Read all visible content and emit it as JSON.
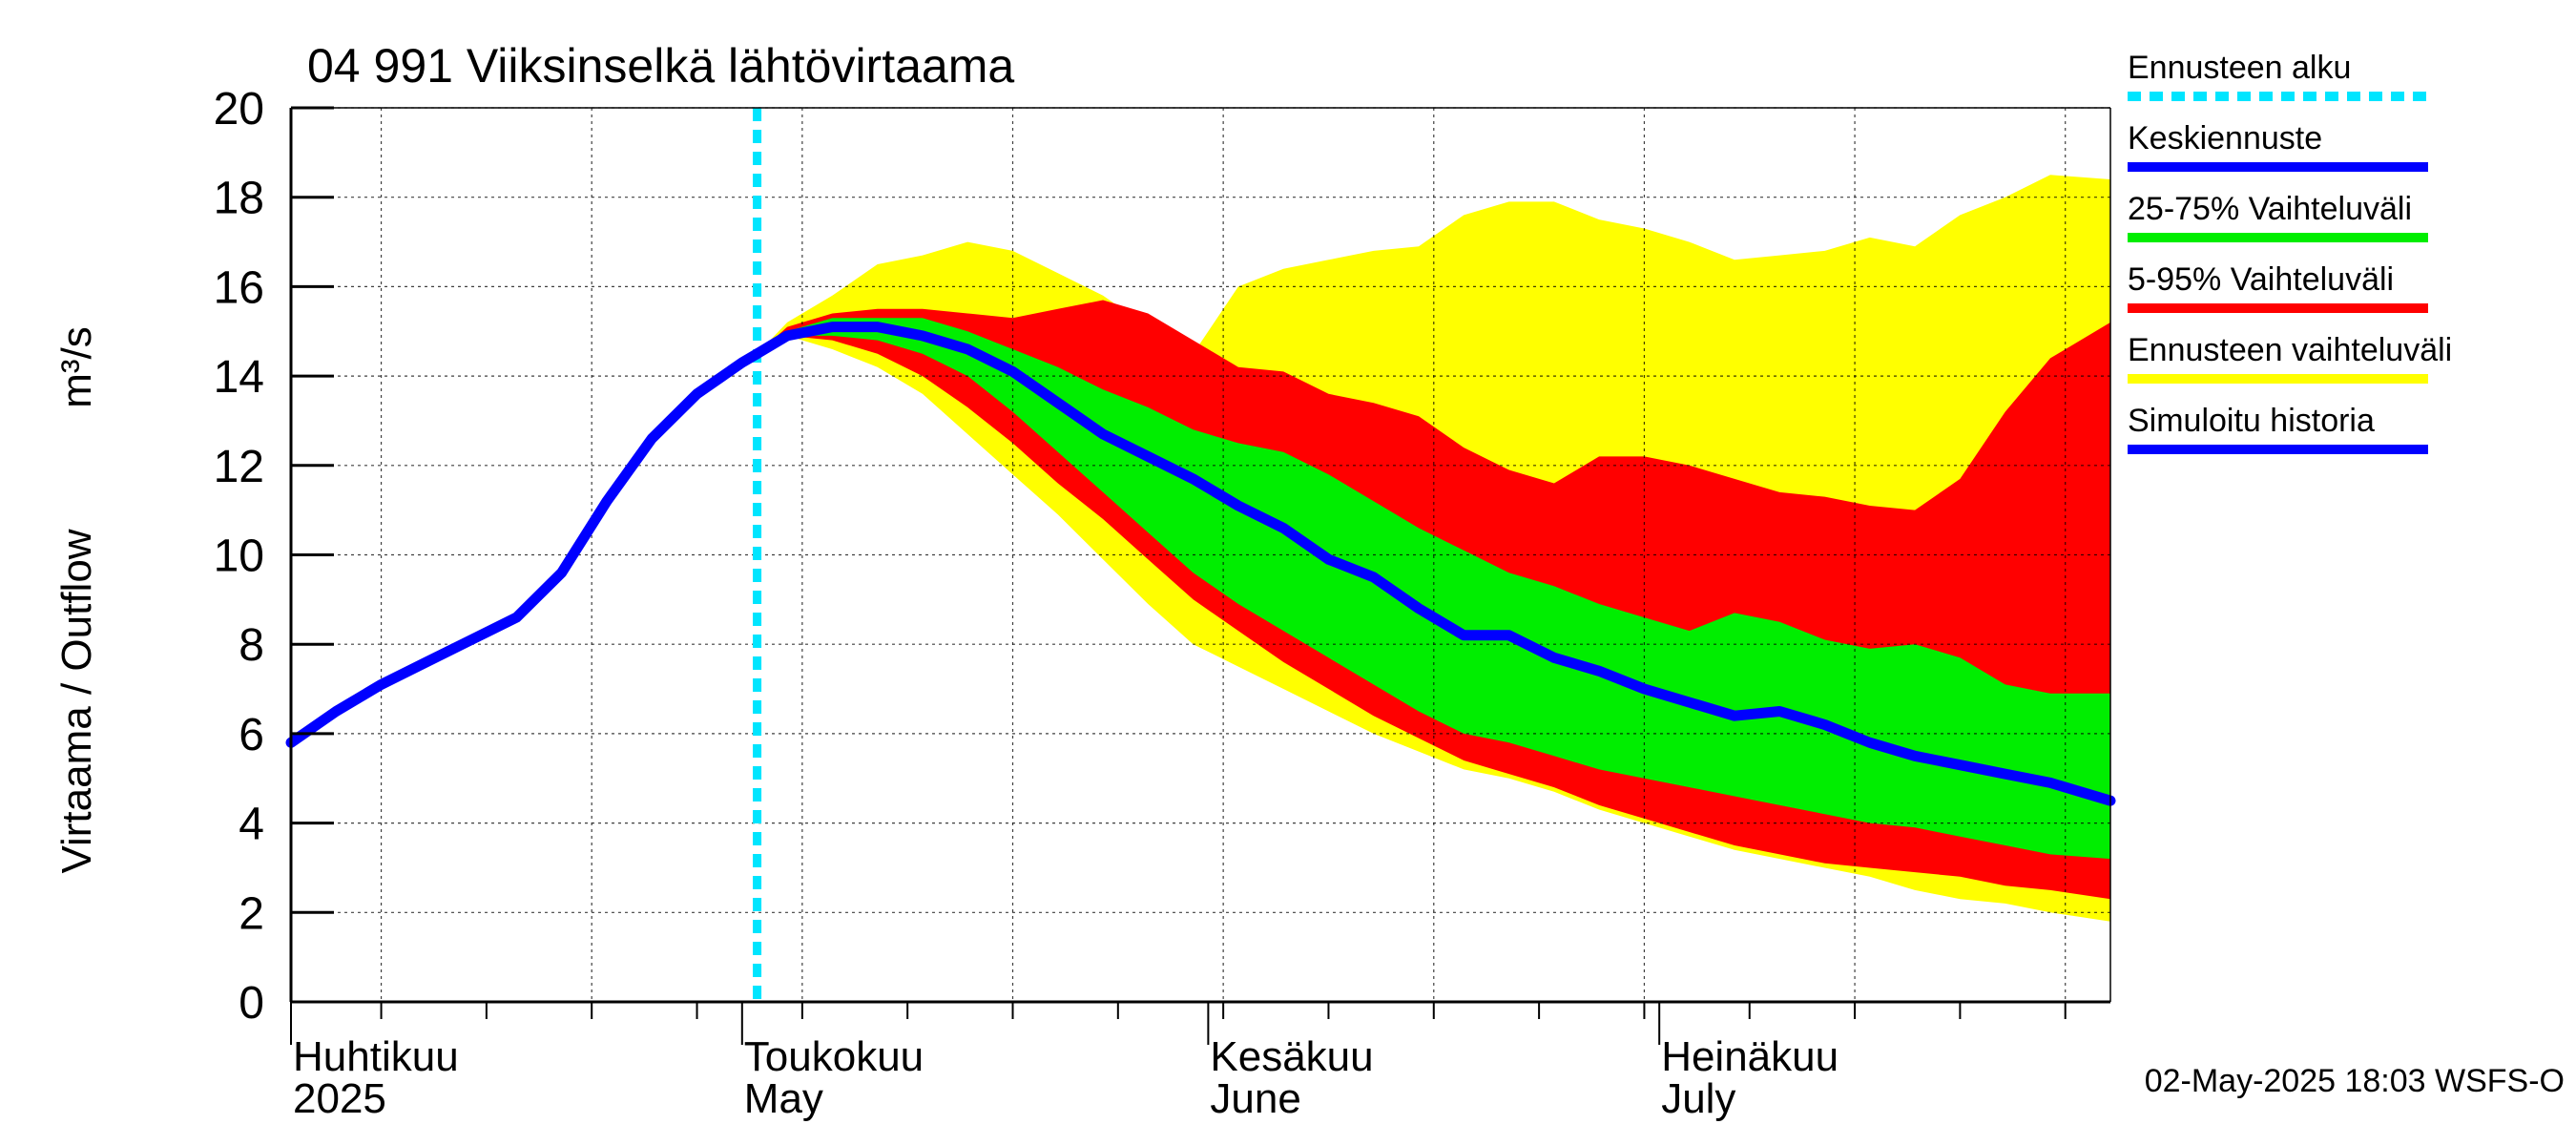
{
  "chart_data": {
    "type": "area",
    "title": "04 991 Viiksinselkä lähtövirtaama",
    "ylabel_left": "Virtaama / Outflow",
    "ylabel_right": "m³/s",
    "ylim": [
      0,
      20
    ],
    "yticks": [
      0,
      2,
      4,
      6,
      8,
      10,
      12,
      14,
      16,
      18,
      20
    ],
    "xrange": [
      "2025-04-01",
      "2025-07-31"
    ],
    "month_labels": [
      {
        "line1": "Huhtikuu",
        "line2": "2025",
        "date": "2025-04-01"
      },
      {
        "line1": "Toukokuu",
        "line2": "May",
        "date": "2025-05-01"
      },
      {
        "line1": "Kesäkuu",
        "line2": "June",
        "date": "2025-06-01"
      },
      {
        "line1": "Heinäkuu",
        "line2": "July",
        "date": "2025-07-01"
      }
    ],
    "forecast_start": "2025-05-02",
    "legend": {
      "position": "right",
      "items": [
        {
          "label": "Ennusteen alku",
          "color": "#00e5ff",
          "style": "dashed"
        },
        {
          "label": "Keskiennuste",
          "color": "#0000ff",
          "style": "solid"
        },
        {
          "label": "25-75% Vaihteluväli",
          "color": "#00ee00",
          "style": "solid"
        },
        {
          "label": "5-95% Vaihteluväli",
          "color": "#ff0000",
          "style": "solid"
        },
        {
          "label": "Ennusteen vaihteluväli",
          "color": "#ffff00",
          "style": "solid"
        },
        {
          "label": "Simuloitu historia",
          "color": "#0000ff",
          "style": "solid"
        }
      ]
    },
    "footer": "02-May-2025 18:03 WSFS-O",
    "colors": {
      "forecast_range": "#ffff00",
      "p5_95": "#ff0000",
      "p25_75": "#00ee00",
      "mean": "#0000ff",
      "forecast_start": "#00e5ff"
    },
    "series": {
      "simulated_history": {
        "x": [
          "2025-04-01",
          "2025-04-04",
          "2025-04-07",
          "2025-04-10",
          "2025-04-13",
          "2025-04-16",
          "2025-04-19",
          "2025-04-22",
          "2025-04-25",
          "2025-04-28",
          "2025-05-01",
          "2025-05-02"
        ],
        "y": [
          5.8,
          6.5,
          7.1,
          7.6,
          8.1,
          8.6,
          9.6,
          11.2,
          12.6,
          13.6,
          14.3,
          14.5
        ]
      },
      "mean_forecast": {
        "x": [
          "2025-05-02",
          "2025-05-04",
          "2025-05-07",
          "2025-05-10",
          "2025-05-13",
          "2025-05-16",
          "2025-05-19",
          "2025-05-22",
          "2025-05-25",
          "2025-05-28",
          "2025-05-31",
          "2025-06-03",
          "2025-06-06",
          "2025-06-09",
          "2025-06-12",
          "2025-06-15",
          "2025-06-18",
          "2025-06-21",
          "2025-06-24",
          "2025-06-27",
          "2025-06-30",
          "2025-07-03",
          "2025-07-06",
          "2025-07-09",
          "2025-07-12",
          "2025-07-15",
          "2025-07-18",
          "2025-07-21",
          "2025-07-24",
          "2025-07-27",
          "2025-07-31"
        ],
        "y": [
          14.5,
          14.9,
          15.1,
          15.1,
          14.9,
          14.6,
          14.1,
          13.4,
          12.7,
          12.2,
          11.7,
          11.1,
          10.6,
          9.9,
          9.5,
          8.8,
          8.2,
          8.2,
          7.7,
          7.4,
          7.0,
          6.7,
          6.4,
          6.5,
          6.2,
          5.8,
          5.5,
          5.3,
          5.1,
          4.9,
          4.5
        ]
      },
      "bands_x": [
        "2025-05-02",
        "2025-05-04",
        "2025-05-07",
        "2025-05-10",
        "2025-05-13",
        "2025-05-16",
        "2025-05-19",
        "2025-05-22",
        "2025-05-25",
        "2025-05-28",
        "2025-05-31",
        "2025-06-03",
        "2025-06-06",
        "2025-06-09",
        "2025-06-12",
        "2025-06-15",
        "2025-06-18",
        "2025-06-21",
        "2025-06-24",
        "2025-06-27",
        "2025-06-30",
        "2025-07-03",
        "2025-07-06",
        "2025-07-09",
        "2025-07-12",
        "2025-07-15",
        "2025-07-18",
        "2025-07-21",
        "2025-07-24",
        "2025-07-27",
        "2025-07-31"
      ],
      "forecast_range_max": [
        14.5,
        15.2,
        15.8,
        16.5,
        16.7,
        17.0,
        16.8,
        16.3,
        15.8,
        15.1,
        14.5,
        16.0,
        16.4,
        16.6,
        16.8,
        16.9,
        17.6,
        17.9,
        17.9,
        17.5,
        17.3,
        17.0,
        16.6,
        16.7,
        16.8,
        17.1,
        16.9,
        17.6,
        18.0,
        18.5,
        18.4
      ],
      "p95": [
        14.5,
        15.1,
        15.4,
        15.5,
        15.5,
        15.4,
        15.3,
        15.5,
        15.7,
        15.4,
        14.8,
        14.2,
        14.1,
        13.6,
        13.4,
        13.1,
        12.4,
        11.9,
        11.6,
        12.2,
        12.2,
        12.0,
        11.7,
        11.4,
        11.3,
        11.1,
        11.0,
        11.7,
        13.2,
        14.4,
        15.2
      ],
      "p75": [
        14.5,
        15.0,
        15.3,
        15.3,
        15.3,
        15.0,
        14.6,
        14.2,
        13.7,
        13.3,
        12.8,
        12.5,
        12.3,
        11.8,
        11.2,
        10.6,
        10.1,
        9.6,
        9.3,
        8.9,
        8.6,
        8.3,
        8.7,
        8.5,
        8.1,
        7.9,
        8.0,
        7.7,
        7.1,
        6.9,
        6.9
      ],
      "p25": [
        14.5,
        14.9,
        14.9,
        14.8,
        14.5,
        14.0,
        13.2,
        12.3,
        11.4,
        10.5,
        9.6,
        8.9,
        8.3,
        7.7,
        7.1,
        6.5,
        6.0,
        5.8,
        5.5,
        5.2,
        5.0,
        4.8,
        4.6,
        4.4,
        4.2,
        4.0,
        3.9,
        3.7,
        3.5,
        3.3,
        3.2
      ],
      "p5": [
        14.5,
        14.9,
        14.8,
        14.5,
        14.0,
        13.3,
        12.5,
        11.6,
        10.8,
        9.9,
        9.0,
        8.3,
        7.6,
        7.0,
        6.4,
        5.9,
        5.4,
        5.1,
        4.8,
        4.4,
        4.1,
        3.8,
        3.5,
        3.3,
        3.1,
        3.0,
        2.9,
        2.8,
        2.6,
        2.5,
        2.3
      ],
      "forecast_range_min": [
        14.5,
        14.9,
        14.6,
        14.2,
        13.6,
        12.7,
        11.8,
        10.9,
        9.9,
        8.9,
        8.0,
        7.5,
        7.0,
        6.5,
        6.0,
        5.6,
        5.2,
        5.0,
        4.7,
        4.3,
        4.0,
        3.7,
        3.4,
        3.2,
        3.0,
        2.8,
        2.5,
        2.3,
        2.2,
        2.0,
        1.8
      ]
    }
  }
}
